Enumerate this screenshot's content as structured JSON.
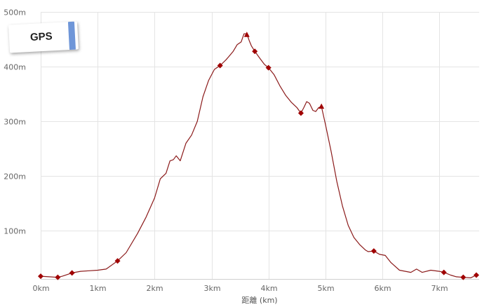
{
  "badge": {
    "label": "GPS",
    "stripe_color": "#6f96d8"
  },
  "chart_data": {
    "type": "line",
    "title": "",
    "xlabel": "距離 (km)",
    "ylabel": "",
    "xlim": [
      0,
      7.7
    ],
    "ylim": [
      12,
      500
    ],
    "x_ticks": [
      0,
      1,
      2,
      3,
      4,
      5,
      6,
      7
    ],
    "x_tick_labels": [
      "0km",
      "1km",
      "2km",
      "3km",
      "4km",
      "5km",
      "6km",
      "7km"
    ],
    "y_ticks": [
      100,
      200,
      300,
      400,
      500
    ],
    "y_tick_labels": [
      "100m",
      "200m",
      "300m",
      "400m",
      "500m"
    ],
    "grid": true,
    "line_color": "#8b1a1a",
    "marker_color": "#a00000",
    "series": [
      {
        "x": [
          0,
          0.15,
          0.3,
          0.38,
          0.55,
          0.7,
          0.85,
          1.0,
          1.15,
          1.35,
          1.5,
          1.7,
          1.85,
          2.0,
          2.1,
          2.2,
          2.27,
          2.33,
          2.38,
          2.45,
          2.55,
          2.65,
          2.75,
          2.85,
          2.95,
          3.05,
          3.15,
          3.25,
          3.3,
          3.38,
          3.45,
          3.52,
          3.57,
          3.62,
          3.66,
          3.7,
          3.76,
          3.85,
          3.93,
          4.0,
          4.1,
          4.2,
          4.3,
          4.4,
          4.5,
          4.57,
          4.62,
          4.67,
          4.72,
          4.78,
          4.83,
          4.88,
          4.93,
          5.0,
          5.1,
          5.2,
          5.3,
          5.4,
          5.5,
          5.6,
          5.7,
          5.75,
          5.85,
          5.95,
          6.05,
          6.15,
          6.3,
          6.5,
          6.6,
          6.7,
          6.85,
          7.0,
          7.08,
          7.2,
          7.3,
          7.42,
          7.55,
          7.65
        ],
        "y": [
          17,
          16,
          15,
          17,
          23,
          26,
          27,
          28,
          30,
          45,
          60,
          95,
          125,
          160,
          195,
          205,
          228,
          230,
          237,
          228,
          260,
          275,
          300,
          345,
          375,
          395,
          402,
          412,
          418,
          428,
          440,
          445,
          460,
          460,
          448,
          438,
          428,
          415,
          404,
          398,
          385,
          365,
          348,
          335,
          325,
          315,
          325,
          336,
          333,
          320,
          318,
          325,
          327,
          295,
          245,
          190,
          145,
          110,
          88,
          75,
          65,
          62,
          63,
          57,
          55,
          42,
          28,
          24,
          30,
          24,
          28,
          26,
          24,
          19,
          16,
          15,
          14,
          19
        ]
      }
    ],
    "markers": [
      {
        "x": 0,
        "y": 17,
        "shape": "diamond"
      },
      {
        "x": 0.3,
        "y": 15,
        "shape": "diamond"
      },
      {
        "x": 0.55,
        "y": 23,
        "shape": "diamond"
      },
      {
        "x": 1.35,
        "y": 45,
        "shape": "diamond"
      },
      {
        "x": 3.15,
        "y": 402,
        "shape": "diamond"
      },
      {
        "x": 3.62,
        "y": 458,
        "shape": "triangle"
      },
      {
        "x": 3.76,
        "y": 428,
        "shape": "diamond"
      },
      {
        "x": 4.0,
        "y": 398,
        "shape": "diamond"
      },
      {
        "x": 4.57,
        "y": 315,
        "shape": "diamond"
      },
      {
        "x": 4.93,
        "y": 327,
        "shape": "triangle"
      },
      {
        "x": 5.85,
        "y": 63,
        "shape": "diamond"
      },
      {
        "x": 7.08,
        "y": 24,
        "shape": "diamond"
      },
      {
        "x": 7.42,
        "y": 15,
        "shape": "diamond"
      },
      {
        "x": 7.65,
        "y": 19,
        "shape": "diamond"
      }
    ]
  }
}
